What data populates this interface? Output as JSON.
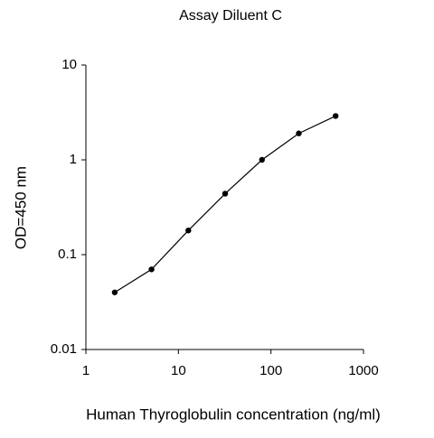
{
  "chart_data": {
    "type": "line",
    "title": "Assay Diluent C",
    "x_label": "Human Thyroglobulin concentration (ng/ml)",
    "y_label": "OD=450 nm",
    "x": [
      2.05,
      5.12,
      12.8,
      32,
      80,
      200,
      500
    ],
    "series": [
      {
        "name": "Assay Diluent C",
        "color": "#000000",
        "values": [
          0.04,
          0.07,
          0.18,
          0.44,
          1.0,
          1.9,
          2.9
        ]
      }
    ],
    "xlim": [
      1,
      1000
    ],
    "ylim": [
      0.01,
      10
    ],
    "xticks": [
      1,
      10,
      100,
      1000
    ],
    "yticks": [
      0.01,
      0.1,
      1,
      10
    ],
    "xscale": "log",
    "yscale": "log"
  }
}
